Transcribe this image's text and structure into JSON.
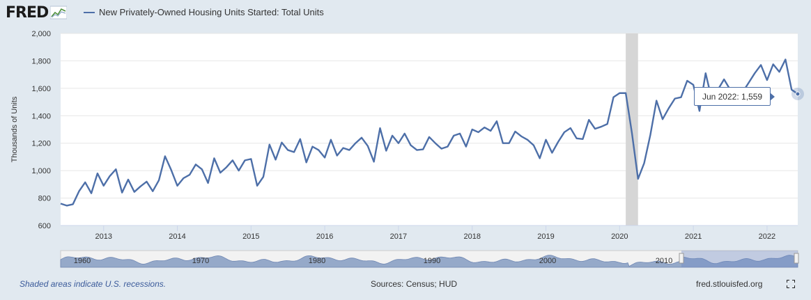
{
  "header": {
    "logo_text": "FRED",
    "series_title": "New Privately-Owned Housing Units Started: Total Units"
  },
  "colors": {
    "line": "#4d6fa8",
    "recession": "#d6d6d6",
    "background": "#e1e9f0",
    "plot": "#ffffff",
    "navigator_fill": "#95a9c9"
  },
  "tooltip": {
    "label": "Jun 2022:",
    "value": "1,559"
  },
  "navigator": {
    "labels": [
      "1960",
      "1970",
      "1980",
      "1990",
      "2000",
      "2010"
    ]
  },
  "footer": {
    "note": "Shaded areas indicate U.S. recessions.",
    "sources": "Sources: Census; HUD",
    "site": "fred.stlouisfed.org",
    "fullscreen_icon": "fullscreen-icon"
  },
  "chart_data": {
    "type": "line",
    "title": "",
    "ylabel": "Thousands of Units",
    "xlabel": "",
    "ylim": [
      600,
      2000
    ],
    "yticks": [
      600,
      800,
      1000,
      1200,
      1400,
      1600,
      1800,
      2000
    ],
    "ytick_labels": [
      "600",
      "800",
      "1,000",
      "1,200",
      "1,400",
      "1,600",
      "1,800",
      "2,000"
    ],
    "xticks": [
      "2013",
      "2014",
      "2015",
      "2016",
      "2017",
      "2018",
      "2019",
      "2020",
      "2021",
      "2022"
    ],
    "x_start": "2012-06",
    "x_end": "2022-06",
    "recession": {
      "start": "2020-02",
      "end": "2020-04"
    },
    "grid": true,
    "series": [
      {
        "name": "New Privately-Owned Housing Units Started: Total Units",
        "values": [
          760,
          745,
          755,
          850,
          915,
          835,
          980,
          890,
          960,
          1010,
          840,
          935,
          845,
          885,
          920,
          850,
          930,
          1105,
          1005,
          890,
          945,
          970,
          1045,
          1010,
          910,
          1090,
          985,
          1025,
          1075,
          1000,
          1075,
          1085,
          890,
          955,
          1190,
          1080,
          1205,
          1150,
          1135,
          1230,
          1060,
          1175,
          1150,
          1095,
          1225,
          1110,
          1165,
          1150,
          1200,
          1240,
          1180,
          1065,
          1310,
          1145,
          1255,
          1200,
          1270,
          1185,
          1150,
          1155,
          1245,
          1200,
          1160,
          1175,
          1255,
          1270,
          1175,
          1300,
          1280,
          1315,
          1290,
          1360,
          1200,
          1200,
          1285,
          1250,
          1225,
          1185,
          1090,
          1225,
          1130,
          1210,
          1280,
          1310,
          1235,
          1230,
          1370,
          1305,
          1320,
          1340,
          1535,
          1565,
          1565,
          1275,
          940,
          1055,
          1260,
          1510,
          1375,
          1455,
          1525,
          1535,
          1655,
          1625,
          1435,
          1710,
          1520,
          1590,
          1665,
          1590,
          1565,
          1570,
          1640,
          1710,
          1770,
          1660,
          1775,
          1720,
          1810,
          1590,
          1559
        ]
      }
    ]
  }
}
